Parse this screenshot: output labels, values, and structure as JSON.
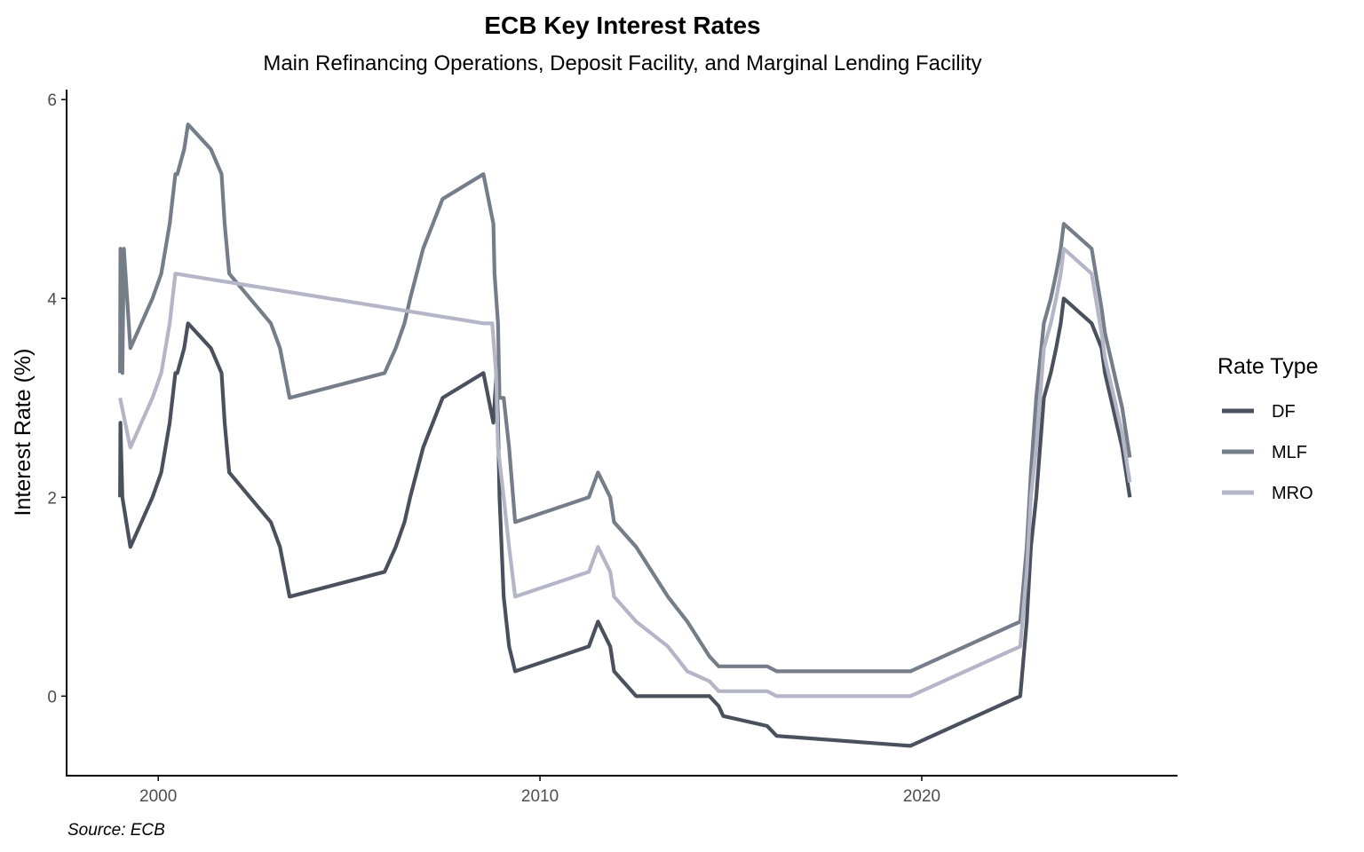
{
  "chart_data": {
    "type": "line",
    "title": "ECB Key Interest Rates",
    "subtitle": "Main Refinancing Operations, Deposit Facility, and Marginal Lending Facility",
    "xlabel": "",
    "ylabel": "Interest Rate (%)",
    "caption": "Source: ECB",
    "xlim": [
      1997.6,
      2026.7
    ],
    "ylim": [
      -0.8,
      6.1
    ],
    "x_ticks": [
      2000,
      2010,
      2020
    ],
    "x_tick_labels": [
      "2000",
      "2010",
      "2020"
    ],
    "y_ticks": [
      0,
      2,
      4,
      6
    ],
    "y_tick_labels": [
      "0",
      "2",
      "4",
      "6"
    ],
    "grid": false,
    "legend": {
      "title": "Rate Type",
      "position": "right"
    },
    "series": [
      {
        "name": "DF",
        "color": "#4a515d",
        "points": [
          [
            1999.0,
            2.0
          ],
          [
            1999.01,
            2.75
          ],
          [
            1999.06,
            2.0
          ],
          [
            1999.27,
            1.5
          ],
          [
            1999.85,
            2.0
          ],
          [
            2000.08,
            2.25
          ],
          [
            2000.3,
            2.75
          ],
          [
            2000.45,
            3.25
          ],
          [
            2000.5,
            3.25
          ],
          [
            2000.68,
            3.5
          ],
          [
            2000.78,
            3.75
          ],
          [
            2001.38,
            3.5
          ],
          [
            2001.66,
            3.25
          ],
          [
            2001.74,
            2.75
          ],
          [
            2001.86,
            2.25
          ],
          [
            2002.95,
            1.75
          ],
          [
            2003.19,
            1.5
          ],
          [
            2003.44,
            1.0
          ],
          [
            2005.93,
            1.25
          ],
          [
            2006.22,
            1.5
          ],
          [
            2006.45,
            1.75
          ],
          [
            2006.6,
            2.0
          ],
          [
            2006.94,
            2.5
          ],
          [
            2007.45,
            3.0
          ],
          [
            2008.52,
            3.25
          ],
          [
            2008.78,
            2.75
          ],
          [
            2008.86,
            3.25
          ],
          [
            2008.9,
            2.75
          ],
          [
            2008.94,
            2.0
          ],
          [
            2009.05,
            1.0
          ],
          [
            2009.19,
            0.5
          ],
          [
            2009.35,
            0.25
          ],
          [
            2011.28,
            0.5
          ],
          [
            2011.52,
            0.75
          ],
          [
            2011.84,
            0.5
          ],
          [
            2011.94,
            0.25
          ],
          [
            2012.52,
            0.0
          ],
          [
            2014.44,
            0.0
          ],
          [
            2014.68,
            -0.1
          ],
          [
            2014.8,
            -0.2
          ],
          [
            2015.95,
            -0.3
          ],
          [
            2016.2,
            -0.4
          ],
          [
            2019.7,
            -0.5
          ],
          [
            2022.58,
            0.0
          ],
          [
            2022.75,
            0.75
          ],
          [
            2022.86,
            1.5
          ],
          [
            2023.0,
            2.0
          ],
          [
            2023.2,
            3.0
          ],
          [
            2023.38,
            3.25
          ],
          [
            2023.52,
            3.5
          ],
          [
            2023.64,
            3.75
          ],
          [
            2023.72,
            4.0
          ],
          [
            2024.45,
            3.75
          ],
          [
            2024.71,
            3.5
          ],
          [
            2024.8,
            3.25
          ],
          [
            2024.95,
            3.0
          ],
          [
            2025.1,
            2.75
          ],
          [
            2025.25,
            2.5
          ],
          [
            2025.45,
            2.0
          ]
        ]
      },
      {
        "name": "MLF",
        "color": "#757d89",
        "points": [
          [
            1999.0,
            3.25
          ],
          [
            1999.01,
            4.5
          ],
          [
            1999.06,
            3.25
          ],
          [
            1999.1,
            4.5
          ],
          [
            1999.27,
            3.5
          ],
          [
            1999.85,
            4.0
          ],
          [
            2000.08,
            4.25
          ],
          [
            2000.3,
            4.75
          ],
          [
            2000.45,
            5.25
          ],
          [
            2000.5,
            5.25
          ],
          [
            2000.68,
            5.5
          ],
          [
            2000.78,
            5.75
          ],
          [
            2001.38,
            5.5
          ],
          [
            2001.66,
            5.25
          ],
          [
            2001.74,
            4.75
          ],
          [
            2001.86,
            4.25
          ],
          [
            2002.95,
            3.75
          ],
          [
            2003.19,
            3.5
          ],
          [
            2003.44,
            3.0
          ],
          [
            2005.93,
            3.25
          ],
          [
            2006.22,
            3.5
          ],
          [
            2006.45,
            3.75
          ],
          [
            2006.6,
            4.0
          ],
          [
            2006.94,
            4.5
          ],
          [
            2007.45,
            5.0
          ],
          [
            2008.52,
            5.25
          ],
          [
            2008.78,
            4.75
          ],
          [
            2008.81,
            4.25
          ],
          [
            2008.9,
            3.75
          ],
          [
            2008.94,
            3.0
          ],
          [
            2009.05,
            3.0
          ],
          [
            2009.19,
            2.5
          ],
          [
            2009.35,
            1.75
          ],
          [
            2011.28,
            2.0
          ],
          [
            2011.52,
            2.25
          ],
          [
            2011.84,
            2.0
          ],
          [
            2011.94,
            1.75
          ],
          [
            2012.52,
            1.5
          ],
          [
            2013.35,
            1.0
          ],
          [
            2013.86,
            0.75
          ],
          [
            2014.44,
            0.4
          ],
          [
            2014.68,
            0.3
          ],
          [
            2015.95,
            0.3
          ],
          [
            2016.2,
            0.25
          ],
          [
            2019.7,
            0.25
          ],
          [
            2022.58,
            0.75
          ],
          [
            2022.75,
            1.5
          ],
          [
            2022.86,
            2.25
          ],
          [
            2023.0,
            3.0
          ],
          [
            2023.2,
            3.75
          ],
          [
            2023.38,
            4.0
          ],
          [
            2023.52,
            4.25
          ],
          [
            2023.64,
            4.5
          ],
          [
            2023.72,
            4.75
          ],
          [
            2024.45,
            4.5
          ],
          [
            2024.71,
            3.9
          ],
          [
            2024.8,
            3.65
          ],
          [
            2024.95,
            3.4
          ],
          [
            2025.1,
            3.15
          ],
          [
            2025.25,
            2.9
          ],
          [
            2025.45,
            2.4
          ]
        ]
      },
      {
        "name": "MRO",
        "color": "#b5b5c8",
        "points": [
          [
            1999.0,
            3.0
          ],
          [
            1999.27,
            2.5
          ],
          [
            1999.85,
            3.0
          ],
          [
            2000.08,
            3.25
          ],
          [
            2000.3,
            3.75
          ],
          [
            2000.45,
            4.25
          ],
          [
            2008.52,
            3.75
          ],
          [
            2008.75,
            3.75
          ],
          [
            2008.85,
            3.25
          ],
          [
            2008.9,
            2.5
          ],
          [
            2009.05,
            2.0
          ],
          [
            2009.19,
            1.5
          ],
          [
            2009.35,
            1.0
          ],
          [
            2011.28,
            1.25
          ],
          [
            2011.52,
            1.5
          ],
          [
            2011.84,
            1.25
          ],
          [
            2011.94,
            1.0
          ],
          [
            2012.52,
            0.75
          ],
          [
            2013.35,
            0.5
          ],
          [
            2013.86,
            0.25
          ],
          [
            2014.44,
            0.15
          ],
          [
            2014.68,
            0.05
          ],
          [
            2015.95,
            0.05
          ],
          [
            2016.2,
            0.0
          ],
          [
            2019.7,
            0.0
          ],
          [
            2022.58,
            0.5
          ],
          [
            2022.75,
            1.25
          ],
          [
            2022.86,
            2.0
          ],
          [
            2023.0,
            2.5
          ],
          [
            2023.2,
            3.5
          ],
          [
            2023.38,
            3.75
          ],
          [
            2023.52,
            4.0
          ],
          [
            2023.64,
            4.25
          ],
          [
            2023.72,
            4.5
          ],
          [
            2024.45,
            4.25
          ],
          [
            2024.71,
            3.65
          ],
          [
            2024.8,
            3.4
          ],
          [
            2024.95,
            3.15
          ],
          [
            2025.1,
            2.9
          ],
          [
            2025.25,
            2.65
          ],
          [
            2025.45,
            2.15
          ]
        ]
      }
    ]
  }
}
